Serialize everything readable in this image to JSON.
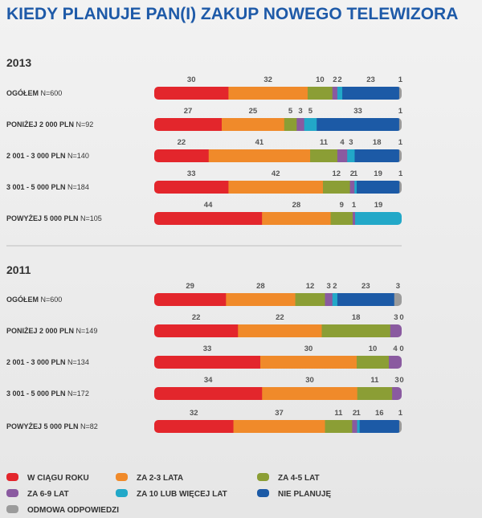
{
  "chart_data": {
    "type": "stacked-bar",
    "title": "KIEDY PLANUJE PAN(I) ZAKUP NOWEGO TELEWIZORA",
    "categories": [
      {
        "name": "W CIĄGU ROKU",
        "color": "#e3262c"
      },
      {
        "name": "ZA 2-3 LATA",
        "color": "#f08a2a"
      },
      {
        "name": "ZA 4-5 LAT",
        "color": "#8b9e35"
      },
      {
        "name": "ZA 6-9 LAT",
        "color": "#8a5aa0"
      },
      {
        "name": "ZA 10 LUB WIĘCEJ LAT",
        "color": "#22a8c8"
      },
      {
        "name": "NIE PLANUJĘ",
        "color": "#1c5aa6"
      },
      {
        "name": "ODMOWA ODPOWIEDZI",
        "color": "#9b9b9b"
      }
    ],
    "groups": [
      {
        "year": "2013",
        "rows": [
          {
            "label": "OGÓŁEM",
            "n": "N=600",
            "values": [
              30,
              32,
              10,
              2,
              2,
              23,
              1
            ]
          },
          {
            "label": "PONIŻEJ 2 000 PLN",
            "n": "N=92",
            "values": [
              27,
              25,
              5,
              3,
              5,
              33,
              1
            ]
          },
          {
            "label": "2 001 - 3 000 PLN",
            "n": "N=140",
            "values": [
              22,
              41,
              11,
              4,
              3,
              18,
              1
            ]
          },
          {
            "label": "3 001 - 5 000 PLN",
            "n": "N=184",
            "values": [
              33,
              42,
              12,
              2,
              1,
              19,
              1
            ]
          },
          {
            "label": "POWYŻEJ 5 000 PLN",
            "n": "N=105",
            "values": [
              44,
              28,
              9,
              1,
              19,
              null,
              null
            ]
          }
        ]
      },
      {
        "year": "2011",
        "rows": [
          {
            "label": "OGÓŁEM",
            "n": "N=600",
            "values": [
              29,
              28,
              12,
              3,
              2,
              23,
              3
            ]
          },
          {
            "label": "PONIŻEJ 2 000 PLN",
            "n": "N=149",
            "values": [
              22,
              22,
              18,
              3,
              0,
              null,
              null
            ]
          },
          {
            "label": "2 001 - 3 000 PLN",
            "n": "N=134",
            "values": [
              33,
              30,
              10,
              4,
              0,
              null,
              null
            ]
          },
          {
            "label": "3 001 - 5 000 PLN",
            "n": "N=172",
            "values": [
              34,
              30,
              11,
              3,
              0,
              null,
              null
            ]
          },
          {
            "label": "POWYŻEJ 5 000 PLN",
            "n": "N=82",
            "values": [
              32,
              37,
              11,
              2,
              1,
              16,
              1
            ]
          }
        ]
      }
    ],
    "xlim": [
      0,
      100
    ]
  }
}
